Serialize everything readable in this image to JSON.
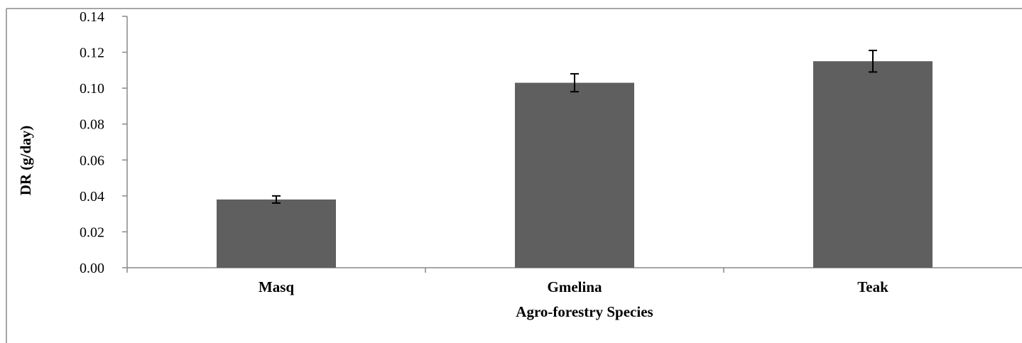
{
  "chart_data": {
    "type": "bar",
    "categories": [
      "Masq",
      "Gmelina",
      "Teak"
    ],
    "values": [
      0.038,
      0.103,
      0.115
    ],
    "errors": [
      0.002,
      0.005,
      0.006
    ],
    "title": "",
    "xlabel": "Agro-forestry Species",
    "ylabel": "DR (g/day)",
    "ylim": [
      0,
      0.14
    ],
    "yticks": [
      "0.00",
      "0.02",
      "0.04",
      "0.06",
      "0.08",
      "0.10",
      "0.12",
      "0.14"
    ],
    "grid": false,
    "legend": "none",
    "bar_color": "#5f5f5f",
    "error_bars": true
  }
}
